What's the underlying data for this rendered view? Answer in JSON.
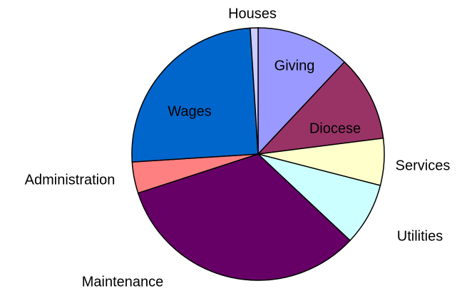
{
  "chart_data": {
    "type": "pie",
    "categories": [
      "Giving",
      "Diocese",
      "Services",
      "Utilities",
      "Maintenance",
      "Administration",
      "Wages",
      "Houses"
    ],
    "values": [
      12,
      11,
      6,
      8,
      33,
      4,
      25,
      1
    ],
    "colors": [
      "#9999ff",
      "#993366",
      "#ffffcc",
      "#ccffff",
      "#660066",
      "#ff8080",
      "#0066cc",
      "#ccccff"
    ]
  }
}
